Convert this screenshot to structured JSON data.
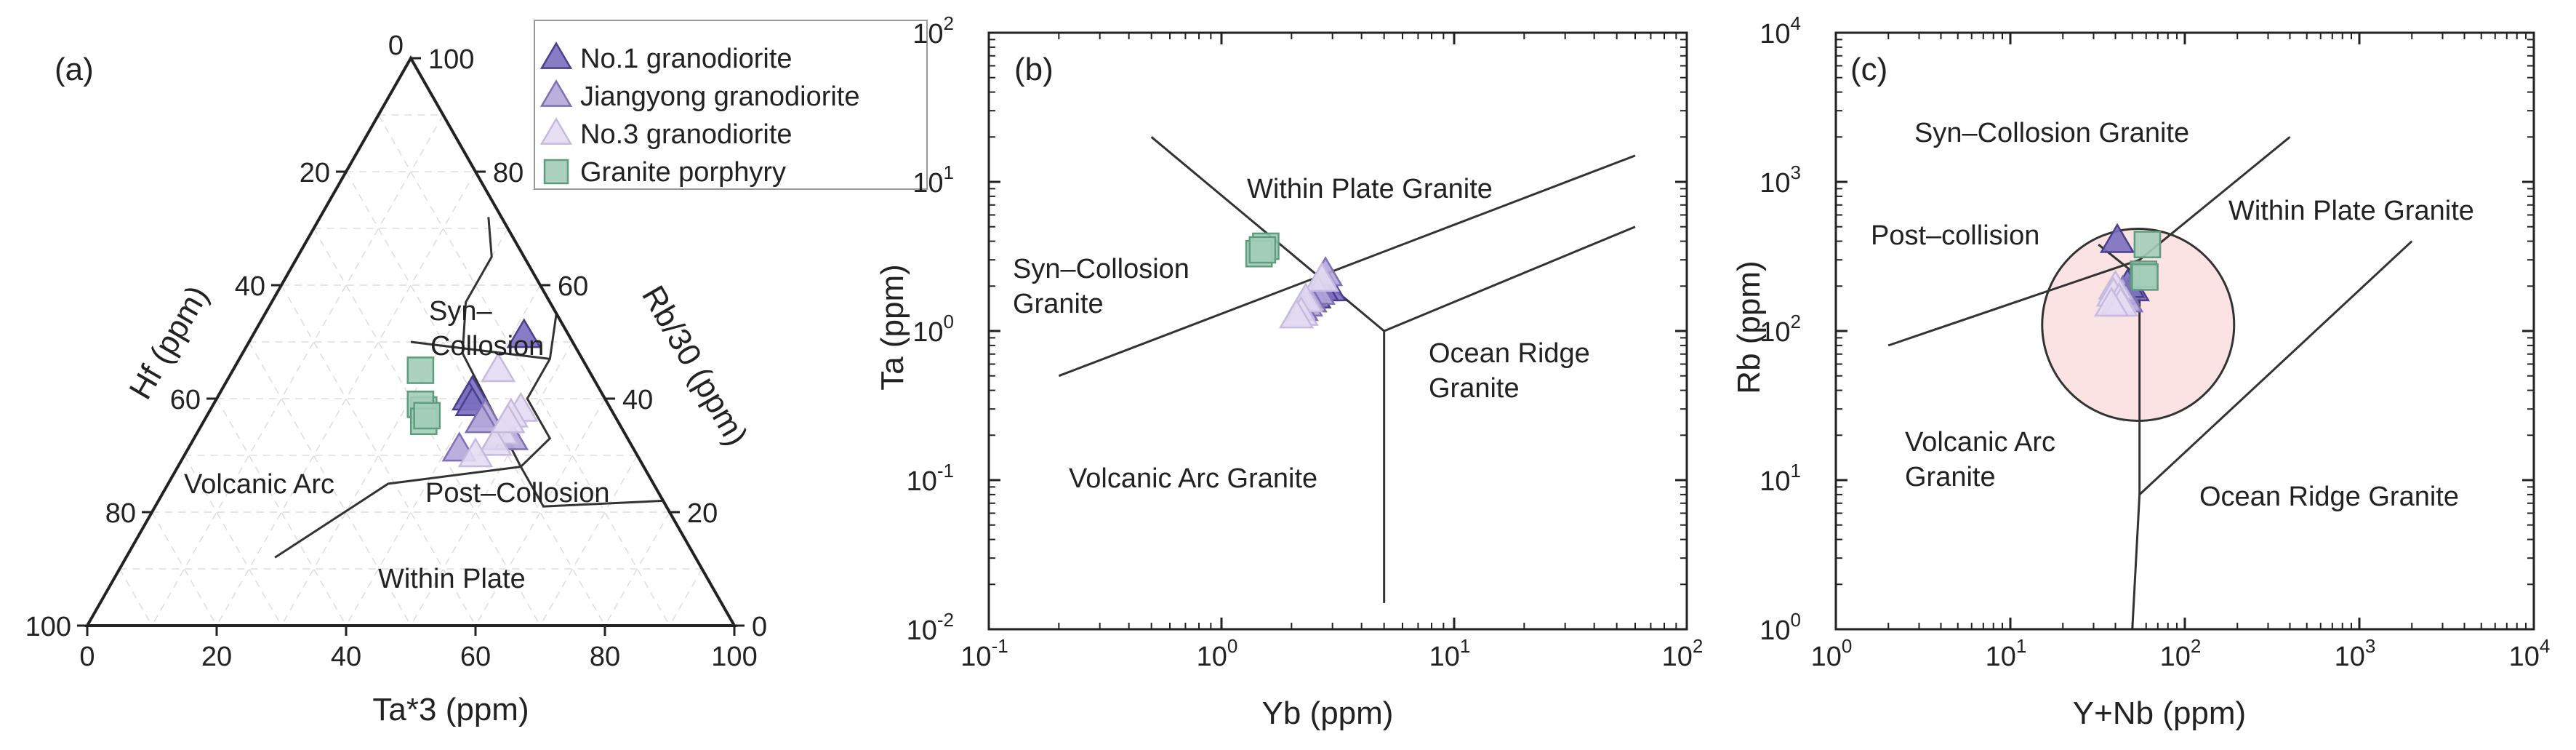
{
  "chart_data": [
    {
      "type": "scatter",
      "subtype": "ternary",
      "panel_label": "(a)",
      "vertices": {
        "top": "Rb/30",
        "left": "Hf",
        "right": "Ta*3"
      },
      "axis_titles": {
        "bottom": "Ta*3 (ppm)",
        "left": "Hf (ppm)",
        "right": "Rb/30 (ppm)"
      },
      "tick_labels": {
        "bottom": [
          "0",
          "20",
          "40",
          "60",
          "80",
          "100"
        ],
        "left": [
          "20",
          "40",
          "60",
          "80",
          "100"
        ],
        "right": [
          "0",
          "20",
          "40",
          "60",
          "80",
          "100"
        ],
        "apex": "0"
      },
      "field_labels": [
        "Volcanic Arc",
        "Within Plate",
        "Syn–",
        "Collosion",
        "Post–Collosion"
      ],
      "boundaries": [
        [
          [
            55,
            0,
            45
          ],
          [
            47,
            5,
            48
          ],
          [
            40,
            12,
            48
          ],
          [
            33,
            12,
            55
          ],
          [
            28,
            19,
            53
          ]
        ],
        [
          [
            28,
            19,
            53
          ],
          [
            48,
            18,
            34
          ],
          [
            57,
            13,
            30
          ],
          [
            65,
            5,
            30
          ],
          [
            72,
            2,
            26
          ]
        ],
        [
          [
            28,
            19,
            53
          ],
          [
            21,
            19,
            60
          ],
          [
            22,
            0,
            78
          ]
        ],
        [
          [
            28,
            19,
            53
          ],
          [
            25,
            41,
            34
          ],
          [
            12,
            65,
            23
          ]
        ],
        [
          [
            47,
            5,
            48
          ],
          [
            50,
            25,
            25
          ]
        ]
      ],
      "series": [
        {
          "name": "No.1 granodiorite",
          "points": [
            [
              51,
              7,
              42
            ],
            [
              41,
              20,
              39
            ],
            [
              40,
              21,
              39
            ],
            [
              39,
              21,
              40
            ]
          ]
        },
        {
          "name": "Jiangyong granodiorite",
          "points": [
            [
              37,
              20,
              43
            ],
            [
              36,
              21,
              43
            ],
            [
              33,
              20,
              47
            ],
            [
              33,
              18,
              49
            ],
            [
              31,
              27,
              42
            ]
          ]
        },
        {
          "name": "No.3 granodiorite",
          "points": [
            [
              45,
              14,
              41
            ],
            [
              38,
              14,
              48
            ],
            [
              37,
              16,
              47
            ],
            [
              34,
              19,
              47
            ],
            [
              32,
              21,
              47
            ],
            [
              30,
              25,
              45
            ],
            [
              36,
              17,
              47
            ]
          ]
        },
        {
          "name": "Granite porphyry",
          "points": [
            [
              45,
              26,
              29
            ],
            [
              38,
              29,
              33
            ],
            [
              39,
              29,
              32
            ],
            [
              36,
              30,
              34
            ],
            [
              37,
              29,
              34
            ]
          ]
        }
      ]
    },
    {
      "type": "scatter",
      "panel_label": "(b)",
      "xlabel": "Yb (ppm)",
      "ylabel": "Ta (ppm)",
      "xscale": "log",
      "yscale": "log",
      "xlim": [
        0.1,
        100
      ],
      "ylim": [
        0.01,
        100
      ],
      "x_ticks": [
        {
          "base": "10",
          "exp": "-1"
        },
        {
          "base": "10",
          "exp": "0"
        },
        {
          "base": "10",
          "exp": "1"
        },
        {
          "base": "10",
          "exp": "2"
        }
      ],
      "y_ticks": [
        {
          "base": "10",
          "exp": "-2"
        },
        {
          "base": "10",
          "exp": "-1"
        },
        {
          "base": "10",
          "exp": "0"
        },
        {
          "base": "10",
          "exp": "1"
        },
        {
          "base": "10",
          "exp": "2"
        }
      ],
      "field_labels": [
        "Within Plate Granite",
        "Syn–Collosion",
        "Granite",
        "Ocean Ridge",
        "Granite",
        "Volcanic Arc Granite"
      ],
      "boundaries": [
        [
          [
            0.5,
            20
          ],
          [
            5,
            1
          ],
          [
            60,
            5
          ]
        ],
        [
          [
            0.2,
            0.5
          ],
          [
            60,
            15
          ]
        ],
        [
          [
            5,
            1
          ],
          [
            5,
            0.015
          ]
        ]
      ],
      "series": [
        {
          "name": "No.1 granodiorite",
          "points": [
            [
              2.9,
              1.9
            ],
            [
              2.7,
              1.9
            ],
            [
              2.5,
              1.7
            ]
          ]
        },
        {
          "name": "Jiangyong granodiorite",
          "points": [
            [
              2.8,
              2.4
            ],
            [
              2.6,
              1.8
            ],
            [
              2.4,
              1.6
            ],
            [
              2.3,
              1.5
            ],
            [
              2.2,
              1.4
            ]
          ]
        },
        {
          "name": "No.3 granodiorite",
          "points": [
            [
              2.7,
              2.2
            ],
            [
              2.3,
              1.6
            ],
            [
              2.2,
              1.3
            ],
            [
              2.1,
              1.25
            ]
          ]
        },
        {
          "name": "Granite porphyry",
          "points": [
            [
              1.55,
              3.7
            ],
            [
              1.45,
              3.3
            ],
            [
              1.5,
              3.5
            ]
          ]
        }
      ]
    },
    {
      "type": "scatter",
      "panel_label": "(c)",
      "xlabel": "Y+Nb (ppm)",
      "ylabel": "Rb (ppm)",
      "xscale": "log",
      "yscale": "log",
      "xlim": [
        1,
        10000
      ],
      "ylim": [
        1,
        10000
      ],
      "x_ticks": [
        {
          "base": "10",
          "exp": "0"
        },
        {
          "base": "10",
          "exp": "1"
        },
        {
          "base": "10",
          "exp": "2"
        },
        {
          "base": "10",
          "exp": "3"
        },
        {
          "base": "10",
          "exp": "4"
        }
      ],
      "y_ticks": [
        {
          "base": "10",
          "exp": "0"
        },
        {
          "base": "10",
          "exp": "1"
        },
        {
          "base": "10",
          "exp": "2"
        },
        {
          "base": "10",
          "exp": "3"
        },
        {
          "base": "10",
          "exp": "4"
        }
      ],
      "field_labels": [
        "Syn–Collosion Granite",
        "Within Plate Granite",
        "Post–collision",
        "Volcanic Arc",
        "Granite",
        "Ocean Ridge Granite"
      ],
      "post_collision_field": {
        "center": [
          54,
          110
        ],
        "radius_decades": 0.55,
        "color": "#fbe3e3"
      },
      "boundaries": [
        [
          [
            2,
            80
          ],
          [
            55,
            300
          ],
          [
            400,
            2000
          ]
        ],
        [
          [
            50,
            1
          ],
          [
            55,
            8
          ],
          [
            2000,
            400
          ]
        ],
        [
          [
            55,
            8
          ],
          [
            55,
            300
          ]
        ],
        [
          [
            32,
            380
          ],
          [
            50,
            250
          ]
        ]
      ],
      "series": [
        {
          "name": "No.1 granodiorite",
          "points": [
            [
              41,
              400
            ],
            [
              50,
              190
            ],
            [
              47,
              200
            ]
          ]
        },
        {
          "name": "Jiangyong granodiorite",
          "points": [
            [
              44,
              180
            ],
            [
              46,
              160
            ],
            [
              41,
              150
            ]
          ]
        },
        {
          "name": "No.3 granodiorite",
          "points": [
            [
              40,
              195
            ],
            [
              39,
              175
            ],
            [
              42,
              160
            ],
            [
              43,
              150
            ],
            [
              38,
              150
            ]
          ]
        },
        {
          "name": "Granite porphyry",
          "points": [
            [
              61,
              380
            ],
            [
              58,
              240
            ],
            [
              59,
              230
            ]
          ]
        }
      ]
    }
  ],
  "legend": [
    {
      "label": "No.1 granodiorite",
      "marker": "triangle",
      "fill": "#7b6fbf",
      "stroke": "#4a3f8f"
    },
    {
      "label": "Jiangyong granodiorite",
      "marker": "triangle",
      "fill": "#b3a6d9",
      "stroke": "#7e70b3"
    },
    {
      "label": "No.3 granodiorite",
      "marker": "triangle",
      "fill": "#e4dcf2",
      "stroke": "#c6badf"
    },
    {
      "label": "Granite porphyry",
      "marker": "square",
      "fill": "#a3cdb8",
      "stroke": "#5e9c7e"
    }
  ],
  "colors": {
    "axis": "#222222",
    "field_line": "#333333",
    "grid": "#dddddd"
  }
}
